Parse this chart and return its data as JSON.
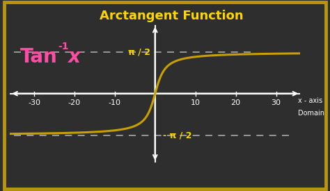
{
  "title": "Arctangent Function",
  "title_color": "#FFD700",
  "title_fontsize": 13,
  "background_color": "#2e2e2e",
  "border_color": "#B8960C",
  "formula_color": "#FF4DA6",
  "formula_fontsize": 20,
  "curve_color": "#C8A000",
  "curve_linewidth": 2.2,
  "axis_color": "#FFFFFF",
  "tick_color": "#FFFFFF",
  "tick_fontsize": 8,
  "dashed_color": "#AAAAAA",
  "x_ticks": [
    -30,
    -20,
    -10,
    10,
    20,
    30
  ],
  "pi_half_label": "π / 2",
  "neg_pi_half_label": "- π / 2",
  "pi_label_color": "#FFD700",
  "x_axis_label": "x - axis",
  "domain_label": "Domain",
  "axis_label_color": "#FFFFFF",
  "xlim": [
    -36,
    36
  ],
  "ylim": [
    -2.6,
    2.6
  ],
  "pi_half": 1.5707963267948966,
  "arctan_scale": 0.55
}
